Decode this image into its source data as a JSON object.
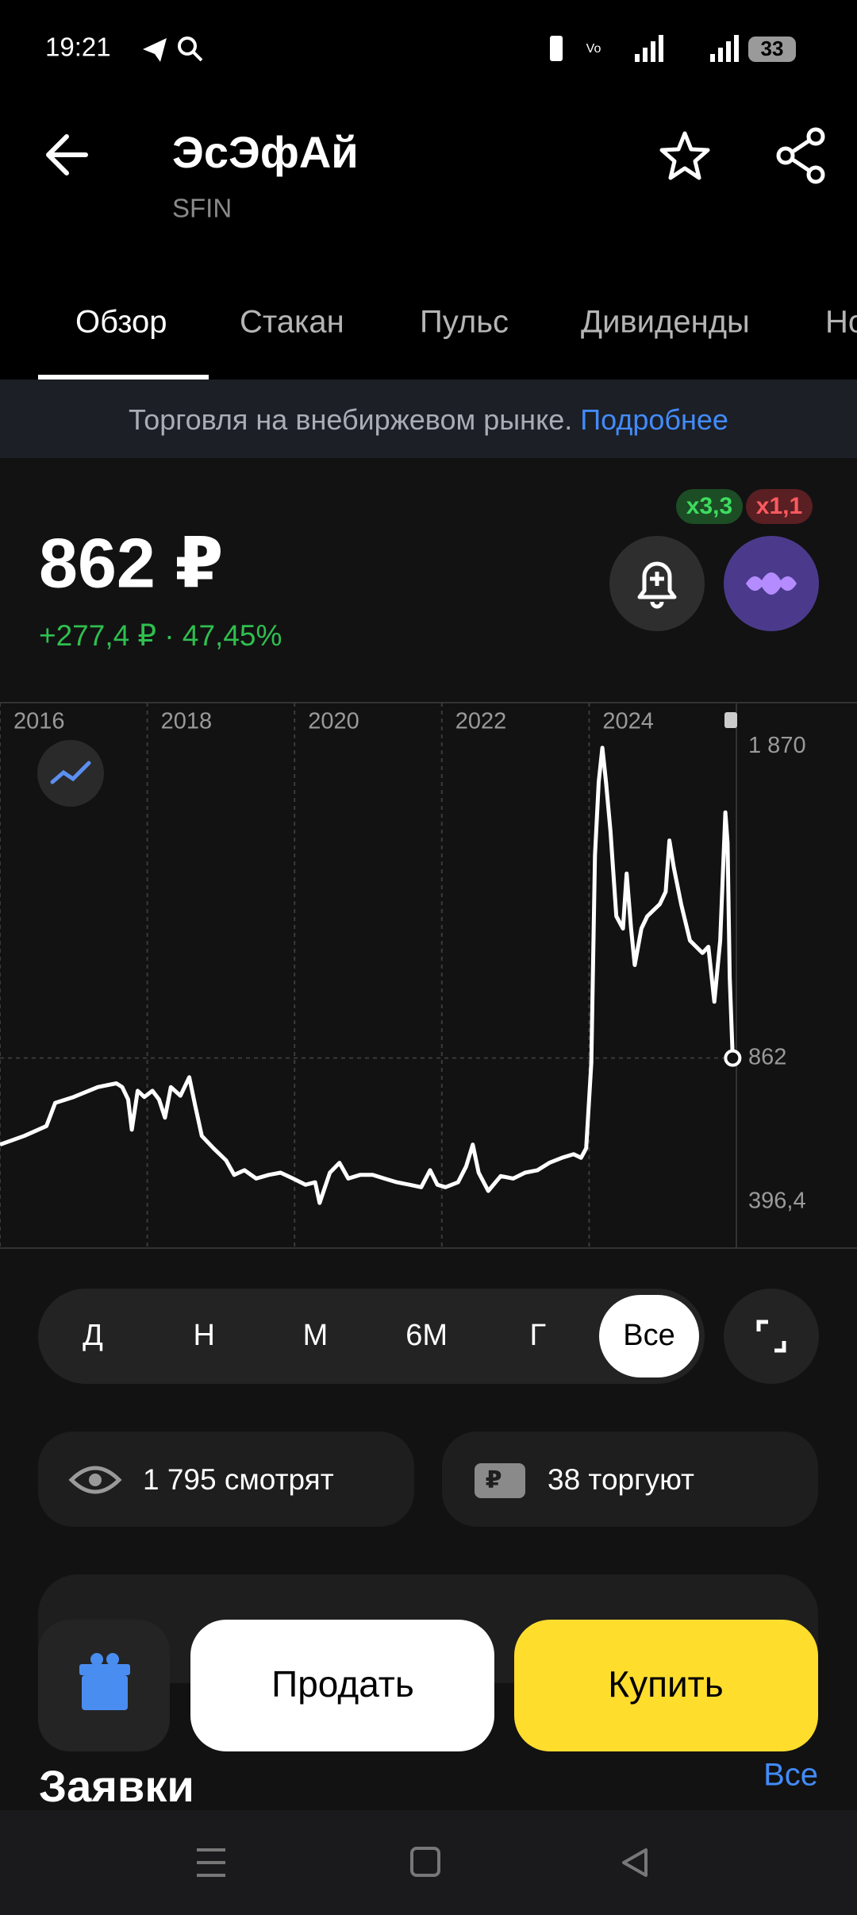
{
  "status_bar": {
    "time": "19:21",
    "battery": "33"
  },
  "header": {
    "title": "ЭсЭфАй",
    "ticker": "SFIN"
  },
  "tabs": [
    "Обзор",
    "Стакан",
    "Пульс",
    "Дивиденды",
    "Но"
  ],
  "banner": {
    "text": "Торговля на внебиржевом рынке.",
    "link": "Подробнее"
  },
  "price": {
    "value": "862 ₽",
    "change": "+277,4 ₽ · 47,45%"
  },
  "badges": [
    "x3,3",
    "x1,1"
  ],
  "chart_data": {
    "type": "line",
    "x": [
      2016.0,
      2016.33,
      2016.63,
      2016.75,
      2017.0,
      2017.33,
      2017.58,
      2017.66,
      2017.74,
      2017.79,
      2017.87,
      2017.96,
      2018.07,
      2018.16,
      2018.24,
      2018.32,
      2018.45,
      2018.57,
      2018.65,
      2018.74,
      2018.9,
      2019.07,
      2019.18,
      2019.32,
      2019.48,
      2019.65,
      2019.81,
      2019.98,
      2020.15,
      2020.28,
      2020.34,
      2020.48,
      2020.61,
      2020.73,
      2020.89,
      2021.06,
      2021.22,
      2021.39,
      2021.56,
      2021.72,
      2021.84,
      2021.94,
      2022.05,
      2022.22,
      2022.33,
      2022.42,
      2022.5,
      2022.63,
      2022.8,
      2022.97,
      2023.13,
      2023.3,
      2023.46,
      2023.63,
      2023.79,
      2023.89,
      2023.96,
      2024.03,
      2024.08,
      2024.13,
      2024.18,
      2024.23,
      2024.29,
      2024.37,
      2024.46,
      2024.51,
      2024.57,
      2024.62,
      2024.71,
      2024.79,
      2024.96,
      2025.04,
      2025.09,
      2025.15,
      2025.25,
      2025.37,
      2025.54,
      2025.62,
      2025.7,
      2025.78,
      2025.85,
      2025.88,
      2025.91,
      2025.95
    ],
    "series": [
      {
        "color": "#ffffff",
        "values": [
          582,
          610,
          642,
          717,
          736,
          768,
          780,
          768,
          728,
          630,
          756,
          736,
          756,
          728,
          669,
          768,
          740,
          800,
          709,
          610,
          570,
          531,
          484,
          499,
          472,
          484,
          491,
          472,
          452,
          460,
          393,
          491,
          523,
          472,
          484,
          484,
          472,
          460,
          452,
          444,
          499,
          452,
          444,
          460,
          511,
          582,
          491,
          432,
          480,
          472,
          491,
          499,
          523,
          539,
          551,
          539,
          570,
          847,
          1518,
          1755,
          1866,
          1755,
          1597,
          1321,
          1281,
          1459,
          1281,
          1163,
          1281,
          1321,
          1360,
          1400,
          1566,
          1479,
          1360,
          1242,
          1202,
          1222,
          1044,
          1242,
          1657,
          1558,
          1123,
          862
        ]
      }
    ],
    "xlim": [
      2016,
      2026
    ],
    "ylim": [
      247,
      2012
    ],
    "xticks": [
      2016,
      2018,
      2020,
      2022,
      2024
    ],
    "yticks": [
      {
        "value": 1870,
        "label": "1 870"
      },
      {
        "value": 862,
        "label": "862"
      },
      {
        "value": 396.4,
        "label": "396,4"
      }
    ],
    "grid": true
  },
  "periods": {
    "items": [
      "Д",
      "Н",
      "М",
      "6М",
      "Г",
      "Все"
    ],
    "selected": 5
  },
  "stats": {
    "watching": "1 795 смотрят",
    "trading": "38 торгуют"
  },
  "actions": {
    "sell": "Продать",
    "buy": "Купить"
  },
  "orders": {
    "title": "Заявки",
    "all": "Все"
  }
}
